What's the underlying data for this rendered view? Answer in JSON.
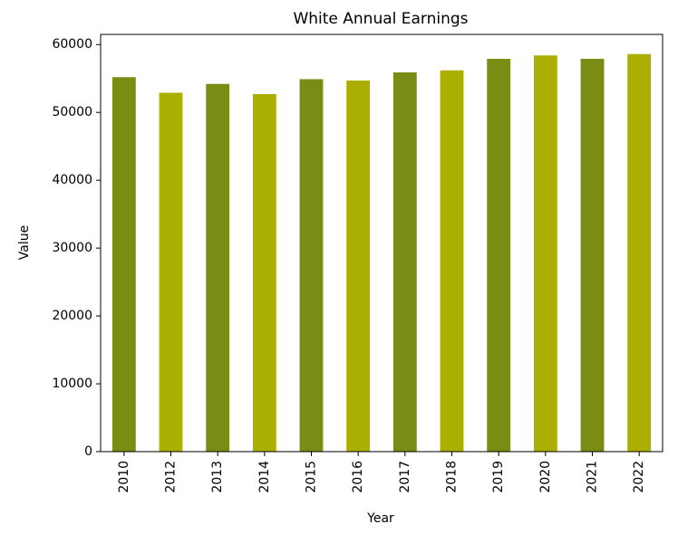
{
  "chart_data": {
    "type": "bar",
    "title": "White Annual Earnings",
    "xlabel": "Year",
    "ylabel": "Value",
    "categories": [
      "2010",
      "2012",
      "2013",
      "2014",
      "2015",
      "2016",
      "2017",
      "2018",
      "2019",
      "2020",
      "2021",
      "2022"
    ],
    "values": [
      55200,
      52900,
      54200,
      52700,
      54900,
      54700,
      55900,
      56200,
      57900,
      58400,
      57900,
      58600
    ],
    "ylim": [
      0,
      61500
    ],
    "yticks": [
      0,
      10000,
      20000,
      30000,
      40000,
      50000,
      60000
    ],
    "bar_colors": [
      "#7a8c14",
      "#aaaf02"
    ],
    "grid": false,
    "legend": "none"
  }
}
